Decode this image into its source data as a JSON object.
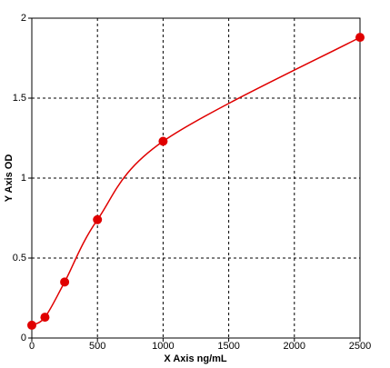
{
  "chart_data": {
    "type": "line",
    "x_label": "X Axis ng/mL",
    "y_label": "Y Axis OD",
    "x": [
      0,
      100,
      250,
      500,
      1000,
      2500
    ],
    "series": [
      {
        "color": "#e00000",
        "values": [
          0.08,
          0.13,
          0.35,
          0.74,
          1.23,
          1.88
        ]
      }
    ],
    "xlim": [
      0,
      2500
    ],
    "xticks": [
      0,
      500,
      1000,
      1500,
      2000,
      2500
    ],
    "ylim": [
      0,
      2
    ],
    "yticks": [
      0,
      0.5,
      1,
      1.5,
      2
    ],
    "grid": true,
    "markers": true
  }
}
